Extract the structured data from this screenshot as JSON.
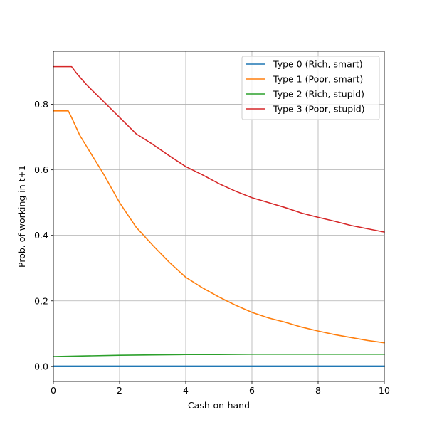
{
  "chart_data": {
    "type": "line",
    "title": "",
    "xlabel": "Cash-on-hand",
    "ylabel": "Prob. of working in t+1",
    "xlim": [
      0,
      10
    ],
    "ylim": [
      -0.046,
      0.962
    ],
    "xticks": [
      0,
      2,
      4,
      6,
      8,
      10
    ],
    "yticks": [
      0.0,
      0.2,
      0.4,
      0.6,
      0.8
    ],
    "xtick_labels": [
      "0",
      "2",
      "4",
      "6",
      "8",
      "10"
    ],
    "ytick_labels": [
      "0.0",
      "0.2",
      "0.4",
      "0.6",
      "0.8"
    ],
    "grid": true,
    "legend_position": "top-right",
    "series": [
      {
        "name": "Type 0 (Rich, smart)",
        "color": "#1f77b4",
        "x": [
          0,
          1,
          2,
          3,
          4,
          5,
          6,
          7,
          8,
          9,
          10
        ],
        "y": [
          0.001,
          0.001,
          0.001,
          0.001,
          0.001,
          0.001,
          0.001,
          0.001,
          0.001,
          0.001,
          0.001
        ]
      },
      {
        "name": "Type 1 (Poor, smart)",
        "color": "#ff7f0e",
        "x": [
          0,
          0.45,
          0.55,
          0.8,
          1.0,
          1.5,
          2.0,
          2.5,
          3.0,
          3.5,
          4.0,
          4.5,
          5.0,
          5.5,
          6.0,
          6.5,
          7.0,
          7.5,
          8.0,
          8.5,
          9.0,
          9.5,
          10.0
        ],
        "y": [
          0.78,
          0.78,
          0.76,
          0.705,
          0.672,
          0.59,
          0.5,
          0.425,
          0.37,
          0.318,
          0.272,
          0.24,
          0.212,
          0.187,
          0.165,
          0.148,
          0.135,
          0.12,
          0.108,
          0.097,
          0.088,
          0.079,
          0.072
        ]
      },
      {
        "name": "Type 2 (Rich, stupid)",
        "color": "#2ca02c",
        "x": [
          0,
          0.5,
          1,
          2,
          3,
          4,
          5,
          6,
          7,
          8,
          9,
          10
        ],
        "y": [
          0.03,
          0.031,
          0.032,
          0.034,
          0.035,
          0.036,
          0.036,
          0.037,
          0.037,
          0.037,
          0.037,
          0.037
        ]
      },
      {
        "name": "Type 3 (Poor, stupid)",
        "color": "#d62728",
        "x": [
          0,
          0.55,
          0.7,
          1.0,
          1.5,
          2.0,
          2.5,
          3.0,
          3.5,
          4.0,
          4.5,
          5.0,
          5.5,
          6.0,
          6.5,
          7.0,
          7.5,
          8.0,
          8.5,
          9.0,
          9.5,
          10.0
        ],
        "y": [
          0.915,
          0.915,
          0.895,
          0.86,
          0.81,
          0.76,
          0.71,
          0.678,
          0.643,
          0.61,
          0.585,
          0.558,
          0.535,
          0.515,
          0.5,
          0.485,
          0.468,
          0.455,
          0.443,
          0.43,
          0.42,
          0.41
        ]
      }
    ]
  }
}
